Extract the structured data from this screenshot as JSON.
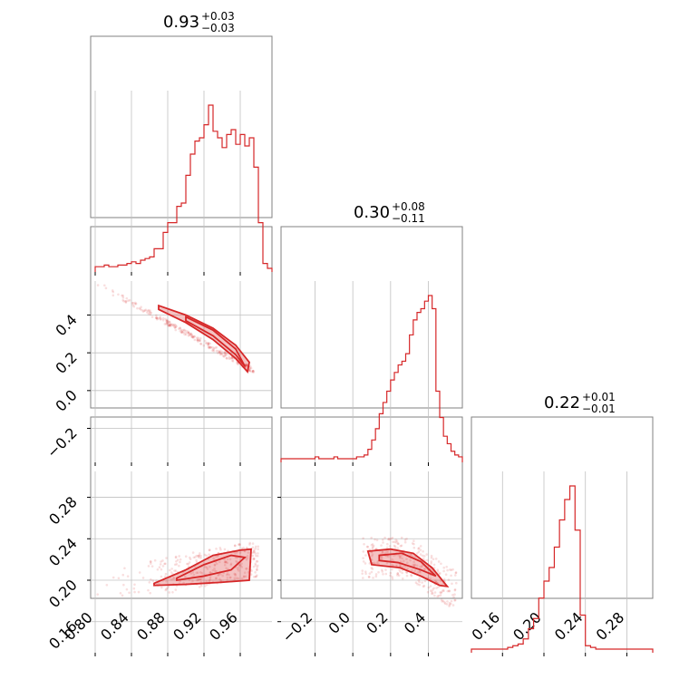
{
  "chart_data": {
    "type": "corner",
    "color": "#d62728",
    "parameters": [
      {
        "title": {
          "median": "0.93",
          "plus": "+0.03",
          "minus": "−0.03"
        },
        "range": [
          0.795,
          0.995
        ],
        "ticks": [
          0.8,
          0.84,
          0.88,
          0.92,
          0.96
        ],
        "tick_labels": [
          "0.80",
          "0.84",
          "0.88",
          "0.92",
          "0.96"
        ],
        "histogram": {
          "bins": [
            0.8,
            0.805,
            0.81,
            0.815,
            0.82,
            0.825,
            0.83,
            0.835,
            0.84,
            0.845,
            0.85,
            0.855,
            0.86,
            0.865,
            0.87,
            0.875,
            0.88,
            0.885,
            0.89,
            0.895,
            0.9,
            0.905,
            0.91,
            0.915,
            0.92,
            0.925,
            0.93,
            0.935,
            0.94,
            0.945,
            0.95,
            0.955,
            0.96,
            0.965,
            0.97,
            0.975,
            0.98,
            0.985,
            0.99
          ],
          "values": [
            1,
            1,
            2,
            1,
            1,
            2,
            2,
            3,
            4,
            3,
            5,
            6,
            7,
            12,
            12,
            22,
            28,
            28,
            38,
            40,
            57,
            70,
            78,
            80,
            88,
            100,
            84,
            80,
            74,
            82,
            85,
            76,
            82,
            75,
            80,
            62,
            28,
            3,
            0
          ]
        }
      },
      {
        "title": {
          "median": "0.30",
          "plus": "+0.08",
          "minus": "−0.11"
        },
        "range": [
          -0.38,
          0.58
        ],
        "ticks": [
          -0.2,
          0.0,
          0.2,
          0.4
        ],
        "tick_labels": [
          "−0.2",
          "0.0",
          "0.2",
          "0.4"
        ],
        "histogram": {
          "bins": [
            -0.38,
            -0.36,
            -0.34,
            -0.32,
            -0.3,
            -0.28,
            -0.26,
            -0.24,
            -0.22,
            -0.2,
            -0.18,
            -0.16,
            -0.14,
            -0.12,
            -0.1,
            -0.08,
            -0.06,
            -0.04,
            -0.02,
            0.0,
            0.02,
            0.04,
            0.06,
            0.08,
            0.1,
            0.12,
            0.14,
            0.16,
            0.18,
            0.2,
            0.22,
            0.24,
            0.26,
            0.28,
            0.3,
            0.32,
            0.34,
            0.36,
            0.38,
            0.4,
            0.42,
            0.44,
            0.46,
            0.48,
            0.5,
            0.52,
            0.54,
            0.56
          ],
          "values": [
            0,
            0,
            0,
            0,
            0,
            0,
            0,
            0,
            0,
            1,
            0,
            0,
            0,
            0,
            1,
            0,
            0,
            0,
            0,
            0,
            1,
            1,
            2,
            5,
            10,
            16,
            24,
            30,
            36,
            42,
            46,
            50,
            52,
            56,
            66,
            74,
            78,
            80,
            84,
            87,
            80,
            36,
            22,
            12,
            8,
            4,
            2,
            1
          ]
        }
      },
      {
        "title": {
          "median": "0.22",
          "plus": "+0.01",
          "minus": "−0.01"
        },
        "range": [
          0.13,
          0.305
        ],
        "ticks": [
          0.16,
          0.2,
          0.24,
          0.28
        ],
        "tick_labels": [
          "0.16",
          "0.20",
          "0.24",
          "0.28"
        ],
        "histogram": {
          "bins": [
            0.13,
            0.135,
            0.14,
            0.145,
            0.15,
            0.155,
            0.16,
            0.165,
            0.17,
            0.175,
            0.18,
            0.185,
            0.19,
            0.195,
            0.2,
            0.205,
            0.21,
            0.215,
            0.22,
            0.225,
            0.23,
            0.235,
            0.24,
            0.245,
            0.25,
            0.255,
            0.26,
            0.265,
            0.27,
            0.275,
            0.28,
            0.285,
            0.29,
            0.295,
            0.3
          ],
          "values": [
            0,
            0,
            0,
            0,
            0,
            0,
            0,
            1,
            2,
            3,
            6,
            12,
            18,
            30,
            40,
            48,
            60,
            76,
            88,
            96,
            70,
            20,
            2,
            1,
            0,
            0,
            0,
            0,
            0,
            0,
            0,
            0,
            0,
            0,
            0
          ]
        }
      }
    ],
    "grid": true,
    "plots": [
      "hist",
      "2d-density",
      "contours"
    ]
  }
}
